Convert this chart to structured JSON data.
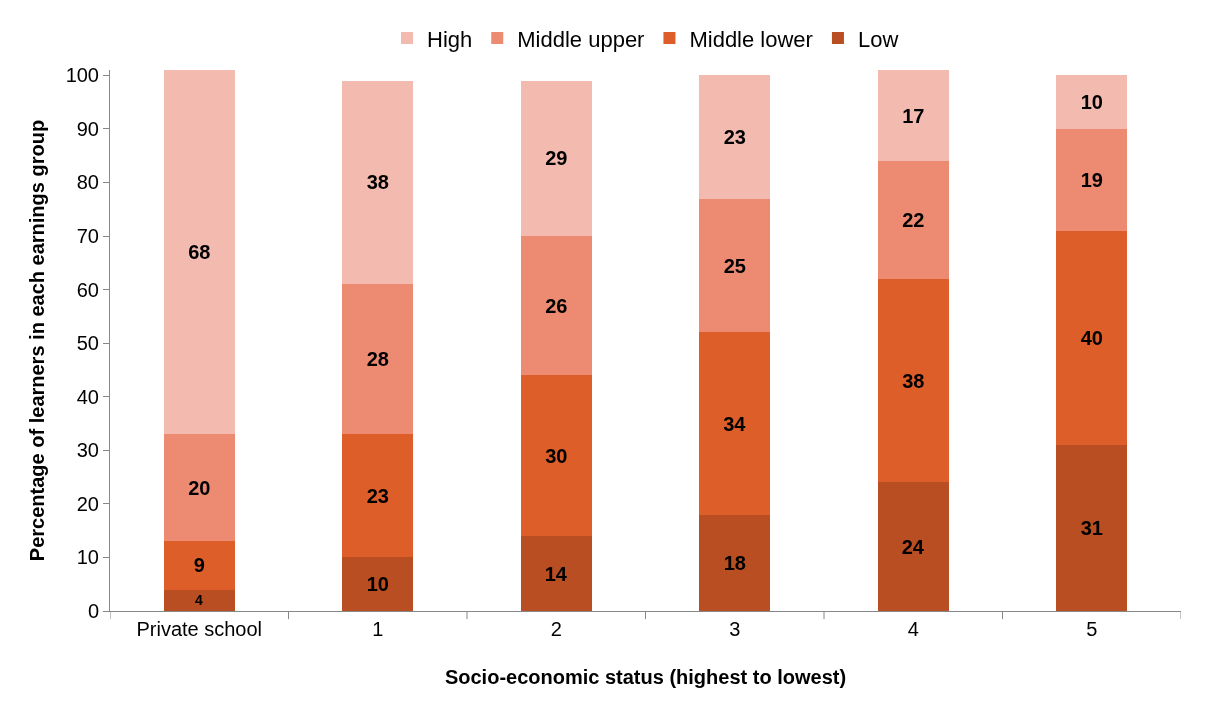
{
  "chart_data": {
    "type": "bar",
    "stacked": true,
    "xlabel": "Socio-economic status (highest to lowest)",
    "ylabel": "Percentage of learners in each earnings group",
    "categories": [
      "Private school",
      "1",
      "2",
      "3",
      "4",
      "5"
    ],
    "series": [
      {
        "name": "Low",
        "color": "#b94e22",
        "values": [
          4,
          10,
          14,
          18,
          24,
          31
        ]
      },
      {
        "name": "Middle lower",
        "color": "#dd5e29",
        "values": [
          9,
          23,
          30,
          34,
          38,
          40
        ]
      },
      {
        "name": "Middle upper",
        "color": "#ed8a72",
        "values": [
          20,
          28,
          26,
          25,
          22,
          19
        ]
      },
      {
        "name": "High",
        "color": "#f3bbb0",
        "values": [
          68,
          38,
          29,
          23,
          17,
          10
        ]
      }
    ],
    "ylim": [
      0,
      101
    ],
    "yticks": [
      0,
      10,
      20,
      30,
      40,
      50,
      60,
      70,
      80,
      90,
      100
    ],
    "grid": false,
    "legend": "top",
    "data_labels": true
  }
}
